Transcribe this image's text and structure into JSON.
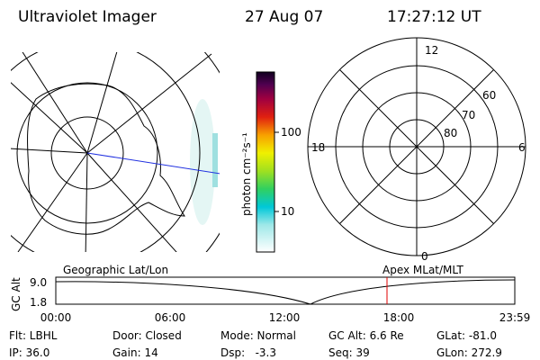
{
  "header": {
    "title": "Ultraviolet Imager",
    "date": "27 Aug 07",
    "time": "17:27:12 UT"
  },
  "colorbar": {
    "label": "photon cm⁻²s⁻¹",
    "ticks": [
      "100",
      "10"
    ]
  },
  "polar_map": {
    "labels": [
      "12",
      "60",
      "70",
      "80",
      "18",
      "6",
      "0"
    ]
  },
  "altitude_plot": {
    "left_label": "Geographic Lat/Lon",
    "right_label": "Apex MLat/MLT",
    "y_label": "GC Alt",
    "yticks": [
      "9.0",
      "1.8"
    ],
    "xticks": [
      "00:00",
      "06:00",
      "12:00",
      "18:00",
      "23:59"
    ]
  },
  "status": {
    "rows": [
      [
        "Flt: LBHL",
        "Door: Closed",
        "Mode: Normal",
        "GC Alt: 6.6 Re",
        "GLat: -81.0"
      ],
      [
        "IP: 36.0",
        "Gain: 14",
        "Dsp:   -3.3",
        "Seq: 39",
        "GLon: 272.9"
      ]
    ]
  }
}
